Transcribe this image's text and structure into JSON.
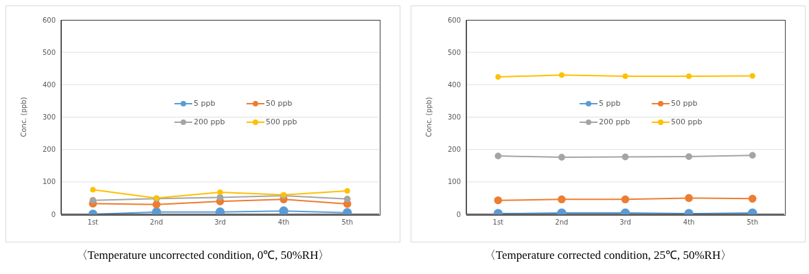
{
  "chart_data": [
    {
      "type": "line",
      "title": "〈Temperature uncorrected condition, 0℃, 50%RH〉",
      "ylabel": "Conc. (ppb)",
      "categories": [
        "1st",
        "2nd",
        "3rd",
        "4th",
        "5th"
      ],
      "series": [
        {
          "name": "5 ppb",
          "color": "#5b9bd5",
          "values": [
            0,
            7,
            7,
            10,
            5
          ]
        },
        {
          "name": "50 ppb",
          "color": "#ed7d31",
          "values": [
            33,
            30,
            40,
            46,
            32
          ]
        },
        {
          "name": "200 ppb",
          "color": "#a5a5a5",
          "values": [
            43,
            48,
            52,
            57,
            47
          ]
        },
        {
          "name": "500 ppb",
          "color": "#ffc000",
          "values": [
            76,
            50,
            68,
            60,
            72
          ]
        }
      ],
      "ylim": [
        0,
        600
      ],
      "yticks": [
        0,
        100,
        200,
        300,
        400,
        500,
        600
      ],
      "grid": "y",
      "legend": "center",
      "marker": "circle",
      "line_style": "solid"
    },
    {
      "type": "line",
      "title": "〈Temperature corrected condition, 25℃, 50%RH〉",
      "ylabel": "Conc. (ppb)",
      "categories": [
        "1st",
        "2nd",
        "3rd",
        "4th",
        "5th"
      ],
      "series": [
        {
          "name": "5 ppb",
          "color": "#5b9bd5",
          "values": [
            2,
            4,
            4,
            2,
            4
          ]
        },
        {
          "name": "50 ppb",
          "color": "#ed7d31",
          "values": [
            43,
            46,
            46,
            50,
            48
          ]
        },
        {
          "name": "200 ppb",
          "color": "#a5a5a5",
          "values": [
            180,
            176,
            177,
            178,
            182
          ]
        },
        {
          "name": "500 ppb",
          "color": "#ffc000",
          "values": [
            424,
            430,
            426,
            426,
            427
          ]
        }
      ],
      "ylim": [
        0,
        600
      ],
      "yticks": [
        0,
        100,
        200,
        300,
        400,
        500,
        600
      ],
      "grid": "y",
      "legend": "center",
      "marker": "circle",
      "line_style": "solid"
    }
  ]
}
